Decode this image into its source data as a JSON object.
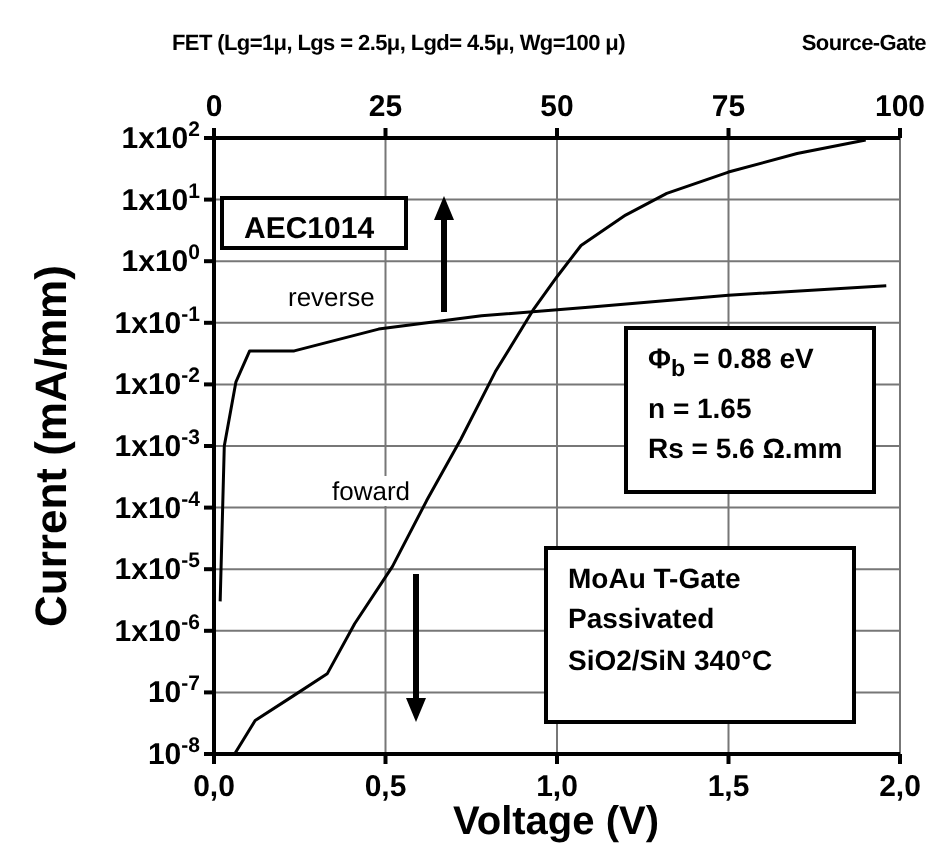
{
  "chart_data": {
    "type": "line",
    "title": "FET (Lg=1μ, Lgs = 2.5μ, Lgd= 4.5μ, Wg=100 μ)",
    "x2label": "Source-Gate",
    "xlabel": "Voltage  (V)",
    "ylabel": "Current  (mA/mm)",
    "log": "y",
    "grid": true,
    "marker": "none",
    "line_style": "solid",
    "xlim": [
      0,
      2
    ],
    "xticks": [
      {
        "value": 0,
        "label": "0,0"
      },
      {
        "value": 0.5,
        "label": "0,5"
      },
      {
        "value": 1,
        "label": "1,0"
      },
      {
        "value": 1.5,
        "label": "1,5"
      },
      {
        "value": 2,
        "label": "2,0"
      }
    ],
    "x2lim": [
      0,
      100
    ],
    "x2ticks": [
      0,
      25,
      50,
      75,
      100
    ],
    "ylim": [
      1e-08,
      100
    ],
    "yticks": [
      {
        "value": 100,
        "label": "1x10$^{2}$"
      },
      {
        "value": 10,
        "label": "1x10$^{1}$"
      },
      {
        "value": 1,
        "label": "1x10$^{0}$"
      },
      {
        "value": 0.1,
        "label": "1x10$^{-1}$"
      },
      {
        "value": 0.01,
        "label": "1x10$^{-2}$"
      },
      {
        "value": 0.001,
        "label": "1x10$^{-3}$"
      },
      {
        "value": 0.0001,
        "label": "1x10$^{-4}$"
      },
      {
        "value": 1e-05,
        "label": "1x10$^{-5}$"
      },
      {
        "value": 1e-06,
        "label": "1x10$^{-6}$"
      },
      {
        "value": 1e-07,
        "label": "10$^{-7}$"
      },
      {
        "value": 1e-08,
        "label": "10$^{-8}$"
      }
    ],
    "series": [
      {
        "color": "#000000",
        "x": [
          0.06,
          0.12,
          0.23,
          0.33,
          0.41,
          0.52,
          0.62,
          0.72,
          0.82,
          0.93,
          1.0,
          1.07,
          1.2,
          1.32,
          1.5,
          1.7,
          1.9
        ],
        "values": [
          1e-08,
          3.5e-08,
          8.7e-08,
          2e-07,
          1.3e-06,
          1.1e-05,
          0.00013,
          0.0013,
          0.016,
          0.16,
          0.56,
          1.8,
          5.6,
          12.6,
          28,
          56,
          93
        ]
      },
      {
        "axis": "x2",
        "color": "#000000",
        "x": [
          0.9,
          1.5,
          3.2,
          5.2,
          11.7,
          24,
          39,
          55,
          75,
          98
        ],
        "values": [
          3e-06,
          0.001,
          0.011,
          0.035,
          0.035,
          0.079,
          0.13,
          0.18,
          0.28,
          0.4
        ]
      }
    ],
    "annotations": [
      "reverse",
      "foward",
      "AEC1014",
      "Φ$_{b}$ = 0.88 eV",
      "n = 1.65",
      "Rs = 5.6 Ω.mm",
      "MoAu  T-Gate",
      "Passivated",
      "SiO2/SiN 340°C"
    ]
  }
}
